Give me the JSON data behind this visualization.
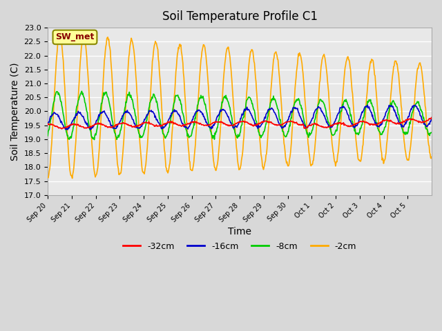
{
  "title": "Soil Temperature Profile C1",
  "xlabel": "Time",
  "ylabel": "Soil Temperature (C)",
  "ylim": [
    17.0,
    23.0
  ],
  "yticks": [
    17.0,
    17.5,
    18.0,
    18.5,
    19.0,
    19.5,
    20.0,
    20.5,
    21.0,
    21.5,
    22.0,
    22.5,
    23.0
  ],
  "background_color": "#e8e8e8",
  "station_label": "SW_met",
  "legend_entries": [
    "-32cm",
    "-16cm",
    "-8cm",
    "-2cm"
  ],
  "line_colors": [
    "#ff0000",
    "#0000cc",
    "#00cc00",
    "#ffaa00"
  ],
  "x_tick_positions": [
    0,
    1,
    2,
    3,
    4,
    5,
    6,
    7,
    8,
    9,
    10,
    11,
    12,
    13,
    14,
    15
  ],
  "x_tick_labels": [
    "Sep 20",
    "Sep 21",
    "Sep 22",
    "Sep 23",
    "Sep 24",
    "Sep 25",
    "Sep 26",
    "Sep 27",
    "Sep 28",
    "Sep 29",
    "Sep 30",
    "Oct 1",
    "Oct 2",
    "Oct 3",
    "Oct 4",
    "Oct 5"
  ]
}
